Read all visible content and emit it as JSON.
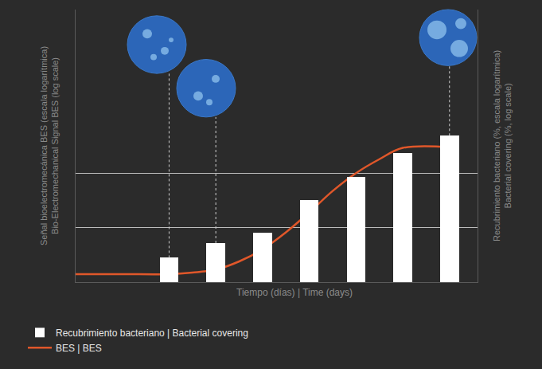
{
  "chart_data": {
    "type": "bar",
    "x_label": "Tiempo (días) | Time (days)",
    "y_label": [
      "Señal bioelectromecánica BES (escala logarítmica)",
      "Bio-Electromechanical Signal BES (log scale)"
    ],
    "y2_label": [
      "Recubrimiento bacteriano (%, escala logarítmica)",
      "Bacterial covering (%, log scale)"
    ],
    "xlim": [
      1,
      9.6
    ],
    "ylim": [
      0.1,
      10000
    ],
    "yticks": [
      1,
      10
    ],
    "y2lim": [
      0.1,
      10000
    ],
    "y2ticks": [
      1,
      10
    ],
    "log": "y",
    "grid": true,
    "tick_labels": false,
    "legend": "bottom left",
    "series": [
      {
        "name": "Recubrimiento bacteriano | Bacterial covering",
        "type": "bar",
        "color": "#ffffff",
        "axis": "y2",
        "x": [
          3,
          4,
          5,
          6,
          7,
          8,
          9
        ],
        "values": [
          0.28,
          0.52,
          0.82,
          3.2,
          8.5,
          23.5,
          48.5
        ]
      },
      {
        "name": "BES | BES",
        "type": "line",
        "color": "#e0572a",
        "x": [
          1,
          2,
          3,
          3.5,
          4,
          4.5,
          5,
          5.5,
          6,
          6.5,
          7,
          7.5,
          8,
          9
        ],
        "values": [
          0.14,
          0.14,
          0.14,
          0.15,
          0.17,
          0.24,
          0.4,
          0.82,
          1.9,
          4.7,
          10,
          18,
          29,
          30
        ]
      }
    ]
  }
}
